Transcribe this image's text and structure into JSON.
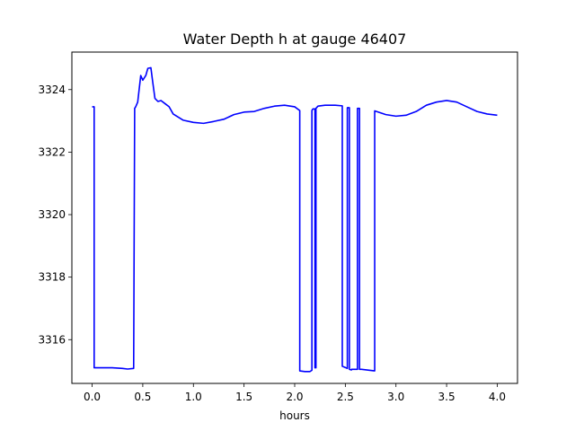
{
  "chart_data": {
    "type": "line",
    "title": "Water Depth h at gauge 46407",
    "xlabel": "hours",
    "ylabel": "",
    "xlim": [
      -0.2,
      4.2
    ],
    "ylim": [
      3314.6,
      3325.2
    ],
    "xticks": [
      0.0,
      0.5,
      1.0,
      1.5,
      2.0,
      2.5,
      3.0,
      3.5,
      4.0
    ],
    "xtick_labels": [
      "0.0",
      "0.5",
      "1.0",
      "1.5",
      "2.0",
      "2.5",
      "3.0",
      "3.5",
      "4.0"
    ],
    "yticks": [
      3316,
      3318,
      3320,
      3322,
      3324
    ],
    "ytick_labels": [
      "3316",
      "3318",
      "3320",
      "3322",
      "3324"
    ],
    "grid": false,
    "series": [
      {
        "color": "#0000ff",
        "x": [
          0.0,
          0.02,
          0.02,
          0.1,
          0.2,
          0.3,
          0.35,
          0.41,
          0.42,
          0.43,
          0.45,
          0.48,
          0.5,
          0.53,
          0.55,
          0.58,
          0.6,
          0.62,
          0.65,
          0.68,
          0.72,
          0.76,
          0.8,
          0.9,
          1.0,
          1.1,
          1.2,
          1.3,
          1.4,
          1.5,
          1.6,
          1.7,
          1.8,
          1.9,
          2.0,
          2.05,
          2.05,
          2.1,
          2.15,
          2.17,
          2.17,
          2.18,
          2.2,
          2.2,
          2.21,
          2.21,
          2.23,
          2.3,
          2.4,
          2.47,
          2.47,
          2.52,
          2.52,
          2.54,
          2.54,
          2.56,
          2.56,
          2.62,
          2.62,
          2.64,
          2.64,
          2.66,
          2.66,
          2.79,
          2.79,
          2.9,
          3.0,
          3.1,
          3.2,
          3.3,
          3.4,
          3.5,
          3.6,
          3.7,
          3.8,
          3.9,
          4.0
        ],
        "y": [
          3323.45,
          3323.45,
          3315.1,
          3315.1,
          3315.1,
          3315.08,
          3315.06,
          3315.08,
          3323.4,
          3323.45,
          3323.6,
          3324.45,
          3324.3,
          3324.45,
          3324.68,
          3324.7,
          3324.2,
          3323.72,
          3323.62,
          3323.65,
          3323.55,
          3323.45,
          3323.22,
          3323.02,
          3322.95,
          3322.92,
          3322.98,
          3323.05,
          3323.2,
          3323.28,
          3323.3,
          3323.4,
          3323.47,
          3323.5,
          3323.45,
          3323.33,
          3315.0,
          3314.98,
          3314.98,
          3315.02,
          3323.33,
          3323.38,
          3323.38,
          3315.1,
          3315.1,
          3323.4,
          3323.47,
          3323.5,
          3323.5,
          3323.48,
          3315.15,
          3315.08,
          3323.42,
          3323.42,
          3315.05,
          3315.03,
          3315.05,
          3315.05,
          3323.4,
          3323.4,
          3315.05,
          3315.05,
          3315.05,
          3315.0,
          3323.32,
          3323.2,
          3323.15,
          3323.18,
          3323.3,
          3323.5,
          3323.6,
          3323.65,
          3323.6,
          3323.45,
          3323.3,
          3323.22,
          3323.18
        ]
      }
    ]
  }
}
